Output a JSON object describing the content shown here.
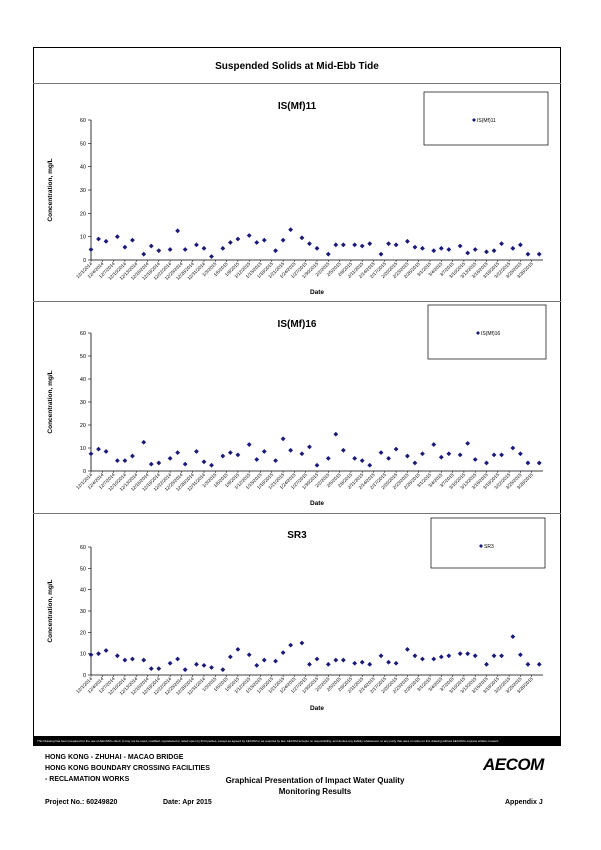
{
  "main_title": "Suspended Solids at Mid-Ebb Tide",
  "disclaimer": "This Drawing has been prepared for the use of AECOM's client. It may not be used, modified, reproduced or relied upon by third parties, except as agreed by AECOM or as required by law. AECOM accepts no responsibility, and denies any liability whatsoever, to any party that uses or relies on this drawing without AECOM's express written consent.",
  "footer": {
    "line1": "HONG KONG - ZHUHAI - MACAO BRIDGE",
    "line2": "HONG KONG BOUNDARY CROSSING FACILITIES",
    "line3": "- RECLAMATION WORKS",
    "heading1": "Graphical Presentation of Impact Water Quality",
    "heading2": "Monitoring Results",
    "project_no": "Project No.: 60249820",
    "date": "Date: Apr 2015",
    "appendix": "Appendix J",
    "logo": "AECOM"
  },
  "colors": {
    "marker": "#1a1a7a",
    "axis": "#000000",
    "box_border": "#000000"
  },
  "chart_data": [
    {
      "type": "scatter",
      "title": "IS(Mf)11",
      "legend": "IS(Mf)11",
      "legend_position": "top-right",
      "xlabel": "Date",
      "ylabel": "Concentration, mg/L",
      "ylim": [
        0,
        60
      ],
      "yticks": [
        0,
        10,
        20,
        30,
        40,
        50,
        60
      ],
      "xlim": [
        "12/1/2014",
        "3/31/2015"
      ],
      "xticks": [
        "12/1/2014",
        "12/4/2014",
        "12/7/2014",
        "12/10/2014",
        "12/13/2014",
        "12/16/2014",
        "12/19/2014",
        "12/22/2014",
        "12/25/2014",
        "12/28/2014",
        "12/31/2014",
        "1/3/2015",
        "1/6/2015",
        "1/9/2015",
        "1/12/2015",
        "1/15/2015",
        "1/18/2015",
        "1/21/2015",
        "1/24/2015",
        "1/27/2015",
        "1/30/2015",
        "2/2/2015",
        "2/5/2015",
        "2/8/2015",
        "2/11/2015",
        "2/14/2015",
        "2/17/2015",
        "2/20/2015",
        "2/23/2015",
        "2/26/2015",
        "3/1/2015",
        "3/4/2015",
        "3/7/2015",
        "3/10/2015",
        "3/13/2015",
        "3/16/2015",
        "3/19/2015",
        "3/22/2015",
        "3/25/2015",
        "3/28/2015"
      ],
      "x": [
        "12/1/2014",
        "12/3/2014",
        "12/5/2014",
        "12/8/2014",
        "12/10/2014",
        "12/12/2014",
        "12/15/2014",
        "12/17/2014",
        "12/19/2014",
        "12/22/2014",
        "12/24/2014",
        "12/26/2014",
        "12/29/2014",
        "12/31/2014",
        "1/2/2015",
        "1/5/2015",
        "1/7/2015",
        "1/9/2015",
        "1/12/2015",
        "1/14/2015",
        "1/16/2015",
        "1/19/2015",
        "1/21/2015",
        "1/23/2015",
        "1/26/2015",
        "1/28/2015",
        "1/30/2015",
        "2/2/2015",
        "2/4/2015",
        "2/6/2015",
        "2/9/2015",
        "2/11/2015",
        "2/13/2015",
        "2/16/2015",
        "2/18/2015",
        "2/20/2015",
        "2/23/2015",
        "2/25/2015",
        "2/27/2015",
        "3/2/2015",
        "3/4/2015",
        "3/6/2015",
        "3/9/2015",
        "3/11/2015",
        "3/13/2015",
        "3/16/2015",
        "3/18/2015",
        "3/20/2015",
        "3/23/2015",
        "3/25/2015",
        "3/27/2015",
        "3/30/2015"
      ],
      "y": [
        4.5,
        9,
        8,
        10,
        5.5,
        8.5,
        2.5,
        6,
        4,
        4.5,
        12.5,
        4.5,
        6.5,
        5,
        1.5,
        5,
        7.5,
        9,
        10.5,
        7.5,
        8.5,
        4,
        8.5,
        13,
        9.5,
        7,
        5,
        2.5,
        6.5,
        6.5,
        6.5,
        6,
        7,
        2.5,
        7,
        6.5,
        8,
        5.5,
        5,
        4,
        5,
        4.5,
        6,
        3,
        4.5,
        3.5,
        4,
        7,
        5,
        6.5,
        2.5,
        2.5
      ]
    },
    {
      "type": "scatter",
      "title": "IS(Mf)16",
      "legend": "IS(Mf)16",
      "legend_position": "top-right",
      "xlabel": "Date",
      "ylabel": "Concentration, mg/L",
      "ylim": [
        0,
        60
      ],
      "yticks": [
        0,
        10,
        20,
        30,
        40,
        50,
        60
      ],
      "xlim": [
        "12/1/2014",
        "3/31/2015"
      ],
      "xticks": [
        "12/1/2014",
        "12/4/2014",
        "12/7/2014",
        "12/10/2014",
        "12/13/2014",
        "12/16/2014",
        "12/19/2014",
        "12/22/2014",
        "12/25/2014",
        "12/28/2014",
        "12/31/2014",
        "1/3/2015",
        "1/6/2015",
        "1/9/2015",
        "1/12/2015",
        "1/15/2015",
        "1/18/2015",
        "1/21/2015",
        "1/24/2015",
        "1/27/2015",
        "1/30/2015",
        "2/2/2015",
        "2/5/2015",
        "2/8/2015",
        "2/11/2015",
        "2/14/2015",
        "2/17/2015",
        "2/20/2015",
        "2/23/2015",
        "2/26/2015",
        "3/1/2015",
        "3/4/2015",
        "3/7/2015",
        "3/10/2015",
        "3/13/2015",
        "3/16/2015",
        "3/19/2015",
        "3/22/2015",
        "3/25/2015",
        "3/28/2015"
      ],
      "x": [
        "12/1/2014",
        "12/3/2014",
        "12/5/2014",
        "12/8/2014",
        "12/10/2014",
        "12/12/2014",
        "12/15/2014",
        "12/17/2014",
        "12/19/2014",
        "12/22/2014",
        "12/24/2014",
        "12/26/2014",
        "12/29/2014",
        "12/31/2014",
        "1/2/2015",
        "1/5/2015",
        "1/7/2015",
        "1/9/2015",
        "1/12/2015",
        "1/14/2015",
        "1/16/2015",
        "1/19/2015",
        "1/21/2015",
        "1/23/2015",
        "1/26/2015",
        "1/28/2015",
        "1/30/2015",
        "2/2/2015",
        "2/4/2015",
        "2/6/2015",
        "2/9/2015",
        "2/11/2015",
        "2/13/2015",
        "2/16/2015",
        "2/18/2015",
        "2/20/2015",
        "2/23/2015",
        "2/25/2015",
        "2/27/2015",
        "3/2/2015",
        "3/4/2015",
        "3/6/2015",
        "3/9/2015",
        "3/11/2015",
        "3/13/2015",
        "3/16/2015",
        "3/18/2015",
        "3/20/2015",
        "3/23/2015",
        "3/25/2015",
        "3/27/2015",
        "3/30/2015"
      ],
      "y": [
        7.5,
        9.5,
        8.5,
        4.5,
        4.5,
        6.5,
        12.5,
        3,
        3.5,
        5.5,
        8,
        3,
        8.5,
        4,
        2.5,
        6.5,
        8,
        7,
        11.5,
        5,
        8.5,
        4.5,
        14,
        9,
        7.5,
        10.5,
        2.5,
        5.5,
        16,
        9,
        5.5,
        4.5,
        2.5,
        8,
        5.5,
        9.5,
        6.5,
        3.5,
        7.5,
        11.5,
        6,
        7.5,
        7,
        12,
        5,
        3.5,
        7,
        7,
        10,
        7.5,
        3.5,
        3.5
      ]
    },
    {
      "type": "scatter",
      "title": "SR3",
      "legend": "SR3",
      "legend_position": "top-right",
      "xlabel": "Date",
      "ylabel": "Concentration, mg/L",
      "ylim": [
        0,
        60
      ],
      "yticks": [
        0,
        10,
        20,
        30,
        40,
        50,
        60
      ],
      "xlim": [
        "12/1/2014",
        "3/31/2015"
      ],
      "xticks": [
        "12/1/2014",
        "12/4/2014",
        "12/7/2014",
        "12/10/2014",
        "12/13/2014",
        "12/16/2014",
        "12/19/2014",
        "12/22/2014",
        "12/25/2014",
        "12/28/2014",
        "12/31/2014",
        "1/3/2015",
        "1/6/2015",
        "1/9/2015",
        "1/12/2015",
        "1/15/2015",
        "1/18/2015",
        "1/21/2015",
        "1/24/2015",
        "1/27/2015",
        "1/30/2015",
        "2/2/2015",
        "2/5/2015",
        "2/8/2015",
        "2/11/2015",
        "2/14/2015",
        "2/17/2015",
        "2/20/2015",
        "2/23/2015",
        "2/26/2015",
        "3/1/2015",
        "3/4/2015",
        "3/7/2015",
        "3/10/2015",
        "3/13/2015",
        "3/16/2015",
        "3/19/2015",
        "3/22/2015",
        "3/25/2015",
        "3/28/2015"
      ],
      "x": [
        "12/1/2014",
        "12/3/2014",
        "12/5/2014",
        "12/8/2014",
        "12/10/2014",
        "12/12/2014",
        "12/15/2014",
        "12/17/2014",
        "12/19/2014",
        "12/22/2014",
        "12/24/2014",
        "12/26/2014",
        "12/29/2014",
        "12/31/2014",
        "1/2/2015",
        "1/5/2015",
        "1/7/2015",
        "1/9/2015",
        "1/12/2015",
        "1/14/2015",
        "1/16/2015",
        "1/19/2015",
        "1/21/2015",
        "1/23/2015",
        "1/26/2015",
        "1/28/2015",
        "1/30/2015",
        "2/2/2015",
        "2/4/2015",
        "2/6/2015",
        "2/9/2015",
        "2/11/2015",
        "2/13/2015",
        "2/16/2015",
        "2/18/2015",
        "2/20/2015",
        "2/23/2015",
        "2/25/2015",
        "2/27/2015",
        "3/2/2015",
        "3/4/2015",
        "3/6/2015",
        "3/9/2015",
        "3/11/2015",
        "3/13/2015",
        "3/16/2015",
        "3/18/2015",
        "3/20/2015",
        "3/23/2015",
        "3/25/2015",
        "3/27/2015",
        "3/30/2015"
      ],
      "y": [
        9.5,
        10,
        11.5,
        9,
        7,
        7.5,
        7,
        3,
        3,
        5.5,
        7.5,
        2.5,
        5,
        4.5,
        3.5,
        2.5,
        8.5,
        12,
        9.5,
        4.5,
        7,
        6.5,
        10.5,
        14,
        15,
        5,
        7.5,
        5,
        7,
        7,
        5.5,
        6,
        5,
        9,
        6,
        5.5,
        12,
        9,
        7.5,
        7.5,
        8.5,
        9,
        10,
        10,
        9,
        5,
        9,
        9,
        18,
        9.5,
        5,
        5
      ]
    }
  ]
}
